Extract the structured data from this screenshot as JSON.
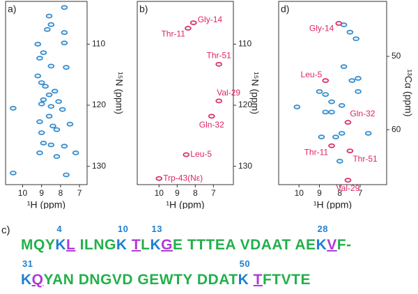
{
  "chart_data": [
    {
      "type": "scatter",
      "panel_label": "a)",
      "xlabel": "¹H (ppm)",
      "ylabel": "¹⁵N (ppm)",
      "xlim": [
        10.9,
        6.6
      ],
      "xticks": [
        10,
        9,
        8,
        7
      ],
      "ylim": [
        103,
        133
      ],
      "yticks": [
        110,
        120,
        130
      ],
      "series": [
        {
          "color": "#2f86c8",
          "x": [
            7.8,
            8.6,
            8.5,
            7.8,
            8.7,
            9.2,
            7.8,
            8.9,
            9.1,
            8.5,
            7.7,
            9.2,
            9.0,
            8.8,
            8.6,
            8.3,
            8.9,
            8.1,
            9.0,
            8.5,
            10.5,
            7.9,
            8.6,
            9.1,
            8.4,
            7.5,
            9.0,
            8.2,
            8.9,
            8.5,
            7.8,
            9.1,
            7.2,
            8.2,
            10.5,
            7.7
          ],
          "values": [
            104.0,
            105.4,
            106.8,
            108.1,
            107.6,
            110.0,
            109.8,
            111.4,
            112.3,
            113.6,
            113.8,
            115.2,
            116.3,
            116.9,
            118.3,
            117.7,
            119.1,
            119.4,
            119.8,
            120.2,
            120.5,
            120.7,
            121.8,
            122.7,
            123.4,
            123.1,
            124.5,
            124.0,
            126.2,
            126.5,
            126.7,
            127.8,
            127.8,
            128.4,
            131.1,
            131.4
          ]
        }
      ]
    },
    {
      "type": "scatter",
      "panel_label": "b)",
      "xlabel": "¹H (ppm)",
      "ylabel": "¹⁵N (ppm)",
      "xlim": [
        11.2,
        5.9
      ],
      "xticks": [
        10,
        9,
        8,
        7
      ],
      "ylim": [
        103,
        133
      ],
      "yticks": [
        110,
        120,
        130
      ],
      "series": [
        {
          "color": "#e0245e",
          "x": [
            8.1,
            8.4,
            6.7,
            6.7,
            7.1,
            8.5,
            10.0
          ],
          "values": [
            106.5,
            107.4,
            113.3,
            119.3,
            121.8,
            128.1,
            132.0
          ],
          "labels": [
            "Gly-14",
            "Thr-11",
            "Thr-51",
            "Val-29",
            "Gln-32",
            "Leu-5",
            "Trp-43(Nε)"
          ]
        }
      ]
    },
    {
      "type": "scatter",
      "panel_label": "d)",
      "xlabel": "¹H (ppm)",
      "ylabel": "¹³Cα (ppm)",
      "xlim": [
        11.0,
        5.7
      ],
      "xticks": [
        10,
        9,
        8,
        7
      ],
      "ylim": [
        42.5,
        67.5
      ],
      "yticks": [
        50,
        60
      ],
      "series": [
        {
          "color": "#2f86c8",
          "x": [
            7.8,
            7.5,
            7.2,
            10.1,
            9.0,
            8.7,
            8.4,
            8.7,
            8.4,
            7.9,
            7.1,
            7.8,
            7.1,
            8.2,
            8.9,
            7.9,
            6.6,
            8.0,
            7.4
          ],
          "values": [
            45.7,
            46.7,
            47.6,
            56.9,
            54.8,
            55.2,
            56.2,
            57.6,
            57.6,
            56.7,
            54.8,
            51.4,
            53.0,
            61.0,
            61.0,
            60.5,
            60.5,
            64.3,
            53.3
          ]
        },
        {
          "color": "#e0245e",
          "x": [
            8.05,
            8.7,
            7.6,
            8.4,
            7.5,
            7.6
          ],
          "values": [
            45.5,
            53.3,
            59.0,
            62.2,
            62.9,
            66.9
          ],
          "labels": [
            "Gly-14",
            "Leu-5",
            "Gln-32",
            "Thr-11",
            "Thr-51",
            "Val-29"
          ]
        }
      ]
    }
  ],
  "sequence": {
    "panel_label": "c)",
    "lines": [
      [
        {
          "text": "MQY",
          "color": "#22b04b"
        },
        {
          "text": "K",
          "color": "#1f7fd0",
          "number": 4
        },
        {
          "text": "L",
          "color": "#b03ad8",
          "underline": true
        },
        {
          "text": " ILNG",
          "color": "#22b04b"
        },
        {
          "text": "K ",
          "color": "#1f7fd0",
          "number": 10
        },
        {
          "text": "T",
          "color": "#b03ad8",
          "underline": true
        },
        {
          "text": "L",
          "color": "#22b04b"
        },
        {
          "text": "K",
          "color": "#1f7fd0",
          "number": 13
        },
        {
          "text": "G",
          "color": "#b03ad8",
          "underline": true
        },
        {
          "text": "E TTTEA VDAAT AE",
          "color": "#22b04b"
        },
        {
          "text": "K",
          "color": "#1f7fd0",
          "number": 28
        },
        {
          "text": "V",
          "color": "#b03ad8",
          "underline": true
        },
        {
          "text": "F-",
          "color": "#22b04b"
        }
      ],
      [
        {
          "text": "K",
          "color": "#1f7fd0",
          "number": 31
        },
        {
          "text": "Q",
          "color": "#b03ad8",
          "underline": true
        },
        {
          "text": "YAN DNGVD GEWTY DDAT",
          "color": "#22b04b"
        },
        {
          "text": "K ",
          "color": "#1f7fd0",
          "number": 50
        },
        {
          "text": "T",
          "color": "#b03ad8",
          "underline": true
        },
        {
          "text": "FTVTE",
          "color": "#22b04b"
        }
      ]
    ]
  }
}
